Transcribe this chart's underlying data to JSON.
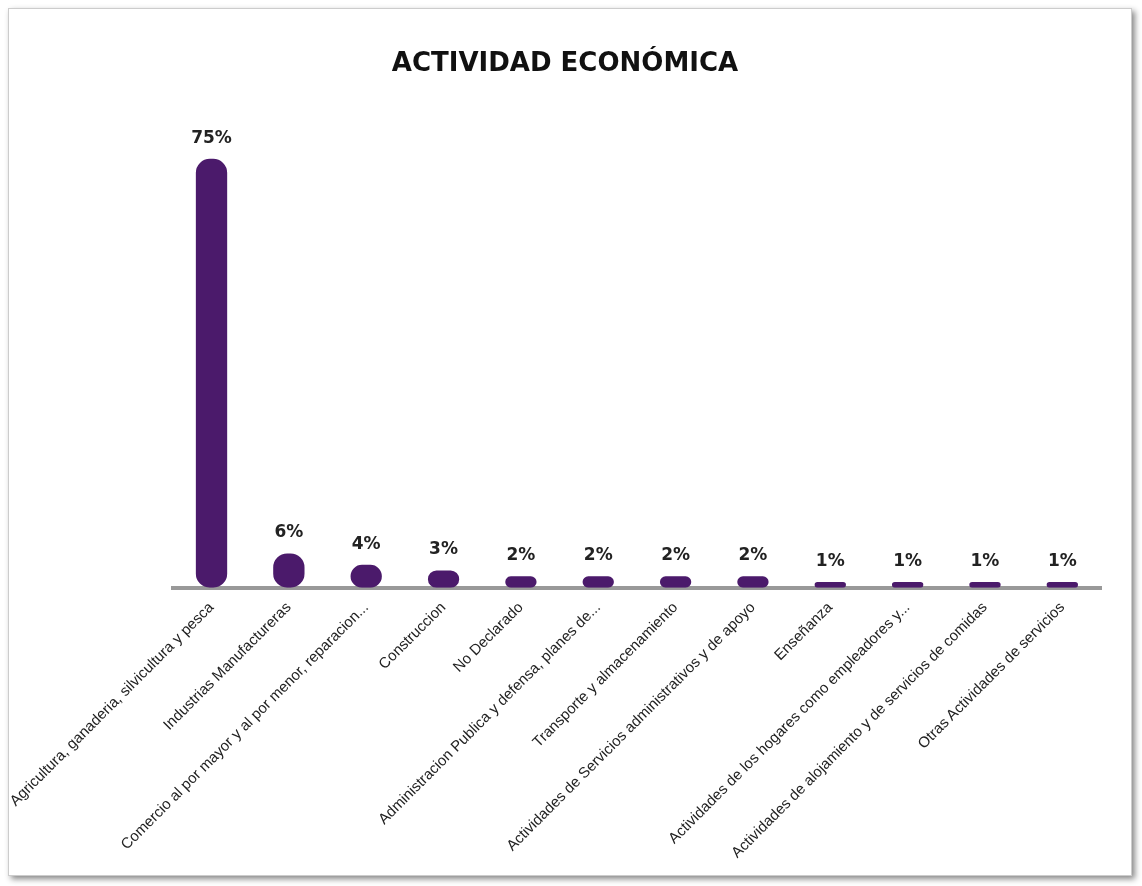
{
  "chart_data": {
    "type": "bar",
    "title": "ACTIVIDAD ECONÓMICA",
    "categories": [
      "Agricultura, ganaderia, silvicultura y pesca",
      "Industrias Manufactureras",
      "Comercio al por mayor y al por menor, reparacion...",
      "Construccion",
      "No Declarado",
      "Administracion Publica y defensa, planes de...",
      "Transporte y almacenamiento",
      "Actividades de Servicios administrativos y de apoyo",
      "Enseñanza",
      "Actividades de los hogares como empleadores y...",
      "Actividades de alojamiento y de servicios de comidas",
      "Otras Actividades de servicios"
    ],
    "values": [
      75,
      6,
      4,
      3,
      2,
      2,
      2,
      2,
      1,
      1,
      1,
      1
    ],
    "value_labels": [
      "75%",
      "6%",
      "4%",
      "3%",
      "2%",
      "2%",
      "2%",
      "2%",
      "1%",
      "1%",
      "1%",
      "1%"
    ],
    "color": "#4b1a6b"
  }
}
